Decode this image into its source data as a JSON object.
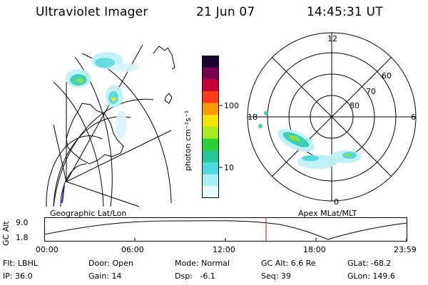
{
  "header": {
    "title": "Ultraviolet Imager",
    "date": "21 Jun 07",
    "time": "14:45:31 UT"
  },
  "left_panel": {
    "caption": "Geographic Lat/Lon"
  },
  "colorbar": {
    "label": "photon cm⁻²s⁻¹",
    "ticks": [
      "100",
      "10"
    ],
    "colors": [
      "#1a0033",
      "#7a0050",
      "#c8003a",
      "#ff3b1e",
      "#ff9a00",
      "#f2e600",
      "#a6ec1e",
      "#2ed13a",
      "#25c79a",
      "#4fd8e0",
      "#a8eef6",
      "#e6fbfc"
    ]
  },
  "right_panel": {
    "caption": "Apex MLat/MLT",
    "mlt_labels": {
      "top": "12",
      "bottom": "0",
      "left": "18",
      "right": "6"
    },
    "mlat_labels": [
      "60",
      "70",
      "80"
    ]
  },
  "altitude_plot": {
    "ylabel": "GC Alt",
    "y_ticks": [
      "9.0",
      "1.8"
    ],
    "x_ticks": [
      "00:00",
      "06:00",
      "12:00",
      "18:00",
      "23:59"
    ],
    "current_time_marker": "14:45"
  },
  "footer": {
    "row1": {
      "flt": "Flt: LBHL",
      "door": "Door: Open",
      "mode": "Mode: Normal",
      "gcalt": "GC Alt: 6.6 Re",
      "glat": "GLat: -68.2"
    },
    "row2": {
      "ip": "IP: 36.0",
      "gain": "Gain: 14",
      "dsp": "Dsp:   -6.1",
      "seq": "Seq: 39",
      "glon": "GLon: 149.6"
    }
  }
}
